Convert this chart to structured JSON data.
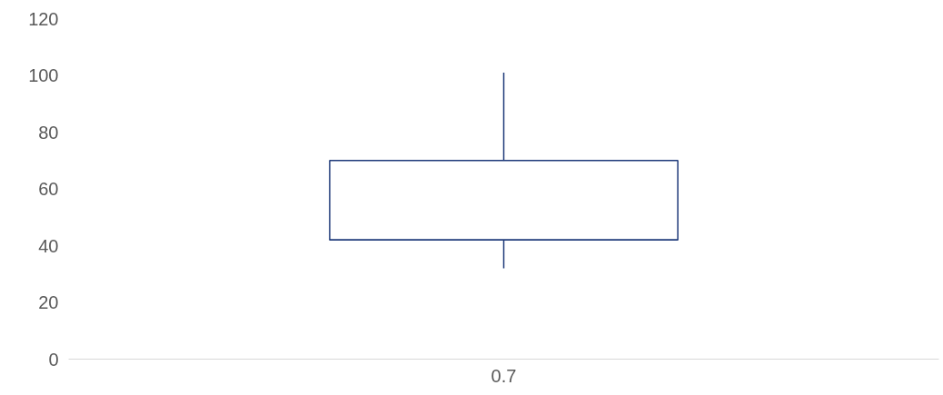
{
  "chart_data": {
    "type": "box",
    "categories": [
      "0.7"
    ],
    "boxes": [
      {
        "low": 32,
        "q1": 42,
        "median": 42,
        "q3": 70,
        "high": 101
      }
    ],
    "color": "#1f3a7a",
    "ylim": [
      0,
      120
    ],
    "yticks": [
      0,
      20,
      40,
      60,
      80,
      100,
      120
    ],
    "grid": false
  }
}
